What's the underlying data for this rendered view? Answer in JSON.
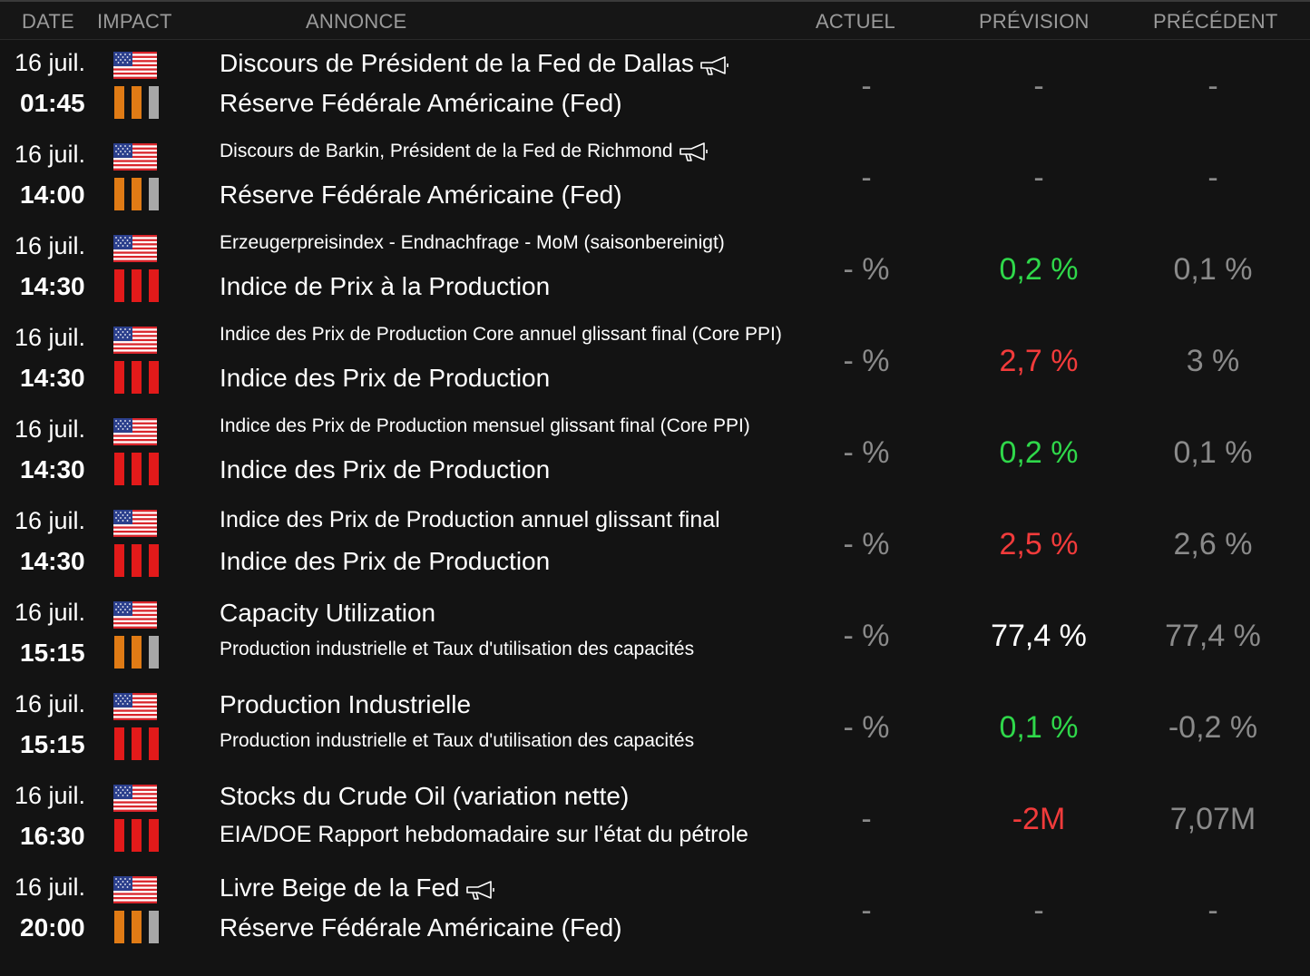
{
  "headers": {
    "date": "DATE",
    "impact": "IMPACT",
    "annonce": "ANNONCE",
    "actuel": "ACTUEL",
    "prevision": "PRÉVISION",
    "precedent": "PRÉCÉDENT"
  },
  "colors": {
    "impact_high": "#e21a1a",
    "impact_medium": "#e07b15",
    "impact_low": "#a8a8a8",
    "forecast_up": "#2fd84a",
    "forecast_down": "#f23b3b"
  },
  "events": [
    {
      "date": "16 juil.",
      "time": "01:45",
      "country": "us-flag-icon",
      "impact": 2,
      "title_top": "Discours de Président de la Fed de Dallas",
      "title_top_size": "big",
      "speech": true,
      "title_bot": "Réserve Fédérale Américaine (Fed)",
      "title_bot_size": "big",
      "actuel": "-",
      "prevision": "-",
      "prevision_color": "dash",
      "precedent": "-"
    },
    {
      "date": "16 juil.",
      "time": "14:00",
      "country": "us-flag-icon",
      "impact": 2,
      "title_top": "Discours de Barkin, Président de la Fed de Richmond",
      "title_top_size": "small",
      "speech": true,
      "title_bot": "Réserve Fédérale Américaine (Fed)",
      "title_bot_size": "big",
      "actuel": "-",
      "prevision": "-",
      "prevision_color": "dash",
      "precedent": "-"
    },
    {
      "date": "16 juil.",
      "time": "14:30",
      "country": "us-flag-icon",
      "impact": 3,
      "title_top": "Erzeugerpreisindex - Endnachfrage - MoM  (saisonbereinigt)",
      "title_top_size": "small",
      "speech": false,
      "title_bot": "Indice de Prix à la Production",
      "title_bot_size": "big",
      "actuel": "- %",
      "prevision": "0,2 %",
      "prevision_color": "green",
      "precedent": "0,1 %"
    },
    {
      "date": "16 juil.",
      "time": "14:30",
      "country": "us-flag-icon",
      "impact": 3,
      "title_top": "Indice des Prix de Production Core annuel glissant final (Core PPI)",
      "title_top_size": "small",
      "speech": false,
      "title_bot": "Indice des Prix de Production",
      "title_bot_size": "big",
      "actuel": "- %",
      "prevision": "2,7 %",
      "prevision_color": "red",
      "precedent": "3 %"
    },
    {
      "date": "16 juil.",
      "time": "14:30",
      "country": "us-flag-icon",
      "impact": 3,
      "title_top": "Indice des Prix de Production mensuel glissant final (Core PPI)",
      "title_top_size": "small",
      "speech": false,
      "title_bot": "Indice des Prix de Production",
      "title_bot_size": "big",
      "actuel": "- %",
      "prevision": "0,2 %",
      "prevision_color": "green",
      "precedent": "0,1 %"
    },
    {
      "date": "16 juil.",
      "time": "14:30",
      "country": "us-flag-icon",
      "impact": 3,
      "title_top": " Indice des Prix de Production annuel glissant final",
      "title_top_size": "medium",
      "speech": false,
      "title_bot": "Indice des Prix de Production",
      "title_bot_size": "big",
      "actuel": "- %",
      "prevision": "2,5 %",
      "prevision_color": "red",
      "precedent": "2,6 %"
    },
    {
      "date": "16 juil.",
      "time": "15:15",
      "country": "us-flag-icon",
      "impact": 2,
      "title_top": "Capacity Utilization",
      "title_top_size": "big",
      "speech": false,
      "title_bot": "Production industrielle et Taux d'utilisation des capacités",
      "title_bot_size": "small",
      "actuel": "- %",
      "prevision": "77,4 %",
      "prevision_color": "white",
      "precedent": "77,4 %"
    },
    {
      "date": "16 juil.",
      "time": "15:15",
      "country": "us-flag-icon",
      "impact": 3,
      "title_top": "Production Industrielle",
      "title_top_size": "big",
      "speech": false,
      "title_bot": "Production industrielle et Taux d'utilisation des capacités",
      "title_bot_size": "small",
      "actuel": "- %",
      "prevision": "0,1 %",
      "prevision_color": "green",
      "precedent": "-0,2 %"
    },
    {
      "date": "16 juil.",
      "time": "16:30",
      "country": "us-flag-icon",
      "impact": 3,
      "title_top": "Stocks du Crude Oil (variation nette)",
      "title_top_size": "big",
      "speech": false,
      "title_bot": "EIA/DOE Rapport hebdomadaire sur l'état du pétrole",
      "title_bot_size": "medium",
      "actuel": "-",
      "prevision": "-2M",
      "prevision_color": "red",
      "precedent": "7,07M"
    },
    {
      "date": "16 juil.",
      "time": "20:00",
      "country": "us-flag-icon",
      "impact": 2,
      "title_top": "Livre Beige de la Fed",
      "title_top_size": "big",
      "speech": true,
      "title_bot": "Réserve Fédérale Américaine (Fed)",
      "title_bot_size": "big",
      "actuel": "-",
      "prevision": "-",
      "prevision_color": "dash",
      "precedent": "-"
    }
  ]
}
